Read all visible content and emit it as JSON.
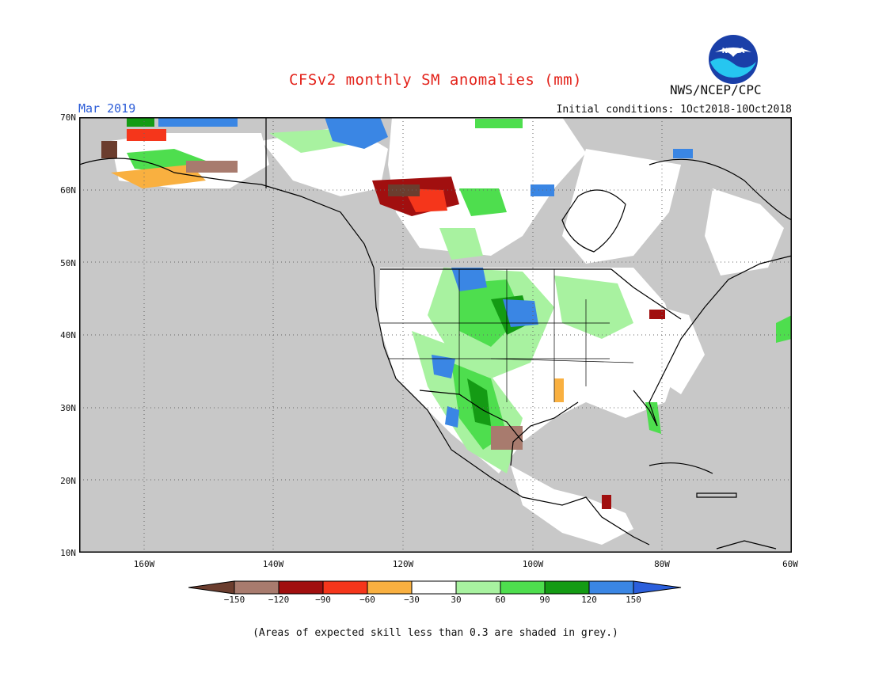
{
  "title": "CFSv2 monthly SM anomalies (mm)",
  "agency": "NWS/NCEP/CPC",
  "month": "Mar 2019",
  "initial_conditions": "Initial conditions: 1Oct2018-10Oct2018",
  "footnote": "(Areas of expected skill less than 0.3 are shaded in grey.)",
  "logo_text": "NOAA",
  "axes": {
    "lat_labels": [
      "70N",
      "60N",
      "50N",
      "40N",
      "30N",
      "20N",
      "10N"
    ],
    "lon_labels": [
      "160W",
      "140W",
      "120W",
      "100W",
      "80W",
      "60W"
    ]
  },
  "colorbar": {
    "labels": [
      "−150",
      "−120",
      "−90",
      "−60",
      "−30",
      "30",
      "60",
      "90",
      "120",
      "150"
    ],
    "colors": [
      "#6b3d2e",
      "#a87b6e",
      "#a10f0f",
      "#f5361b",
      "#f9b040",
      "#ffffff",
      "#a8f2a0",
      "#4ede4e",
      "#149b14",
      "#3a86e4",
      "#2b5fdc"
    ]
  },
  "colors": {
    "grey_low_skill": "#c8c8c8",
    "title_red": "#e3231b",
    "month_blue": "#2a5bd7"
  },
  "map": {
    "type": "gridded anomaly map",
    "region": "North America",
    "lat_range": [
      10,
      70
    ],
    "lon_range": [
      -170,
      -60
    ],
    "grid_lines": "dotted"
  }
}
